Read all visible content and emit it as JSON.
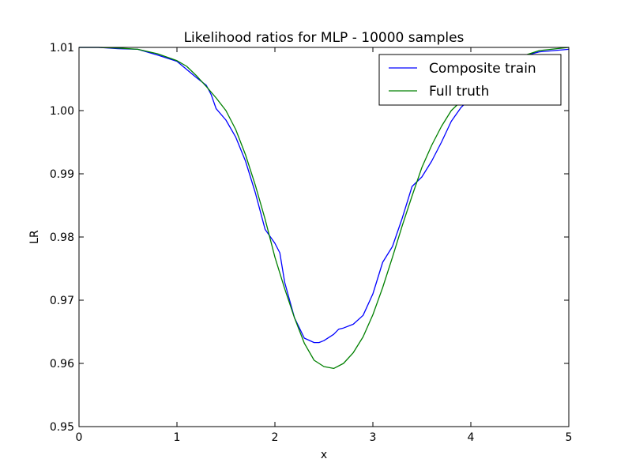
{
  "chart_data": {
    "type": "line",
    "title": "Likelihood ratios for MLP - 10000 samples",
    "xlabel": "x",
    "ylabel": "LR",
    "xlim": [
      0,
      5
    ],
    "ylim": [
      0.95,
      1.01
    ],
    "x_ticks": [
      0,
      1,
      2,
      3,
      4,
      5
    ],
    "x_tick_labels": [
      "0",
      "1",
      "2",
      "3",
      "4",
      "5"
    ],
    "y_ticks": [
      0.95,
      0.96,
      0.97,
      0.98,
      0.99,
      1.0,
      1.01
    ],
    "y_tick_labels": [
      "0.95",
      "0.96",
      "0.97",
      "0.98",
      "0.99",
      "1.00",
      "1.01"
    ],
    "grid": false,
    "legend_position": "top-right",
    "series": [
      {
        "name": "Composite train",
        "color": "#0000ff",
        "x": [
          0,
          0.2,
          0.4,
          0.6,
          0.8,
          1.0,
          1.1,
          1.2,
          1.3,
          1.35,
          1.4,
          1.5,
          1.6,
          1.7,
          1.8,
          1.9,
          2.0,
          2.05,
          2.1,
          2.2,
          2.3,
          2.4,
          2.45,
          2.5,
          2.6,
          2.65,
          2.7,
          2.8,
          2.9,
          3.0,
          3.1,
          3.2,
          3.3,
          3.4,
          3.5,
          3.6,
          3.7,
          3.8,
          3.9,
          4.0,
          4.2,
          4.5,
          4.7,
          5.0
        ],
        "y": [
          1.01,
          1.01,
          1.0098,
          1.0097,
          1.0088,
          1.0078,
          1.0065,
          1.0052,
          1.004,
          1.0025,
          1.0003,
          0.9985,
          0.9958,
          0.992,
          0.987,
          0.9812,
          0.979,
          0.9775,
          0.9728,
          0.9672,
          0.964,
          0.9633,
          0.9633,
          0.9636,
          0.9646,
          0.9654,
          0.9656,
          0.9662,
          0.9676,
          0.971,
          0.976,
          0.9785,
          0.983,
          0.988,
          0.9895,
          0.992,
          0.995,
          0.9983,
          1.0005,
          1.002,
          1.005,
          1.0085,
          1.0093,
          1.0097
        ]
      },
      {
        "name": "Full truth",
        "color": "#008000",
        "x": [
          0,
          0.2,
          0.4,
          0.6,
          0.8,
          1.0,
          1.1,
          1.2,
          1.3,
          1.4,
          1.5,
          1.6,
          1.7,
          1.8,
          1.9,
          2.0,
          2.1,
          2.2,
          2.3,
          2.4,
          2.5,
          2.6,
          2.7,
          2.8,
          2.9,
          3.0,
          3.1,
          3.2,
          3.3,
          3.4,
          3.5,
          3.6,
          3.7,
          3.8,
          3.9,
          4.0,
          4.2,
          4.5,
          4.7,
          5.0
        ],
        "y": [
          1.01,
          1.01,
          1.0099,
          1.0097,
          1.009,
          1.0079,
          1.007,
          1.0055,
          1.0038,
          1.002,
          1.0,
          0.997,
          0.993,
          0.9882,
          0.9828,
          0.9768,
          0.9718,
          0.9672,
          0.9632,
          0.9605,
          0.9595,
          0.9592,
          0.96,
          0.9617,
          0.9642,
          0.9677,
          0.972,
          0.9768,
          0.9818,
          0.9865,
          0.991,
          0.9945,
          0.9975,
          1.0,
          1.0015,
          1.003,
          1.0055,
          1.0085,
          1.0095,
          1.01
        ]
      }
    ]
  }
}
